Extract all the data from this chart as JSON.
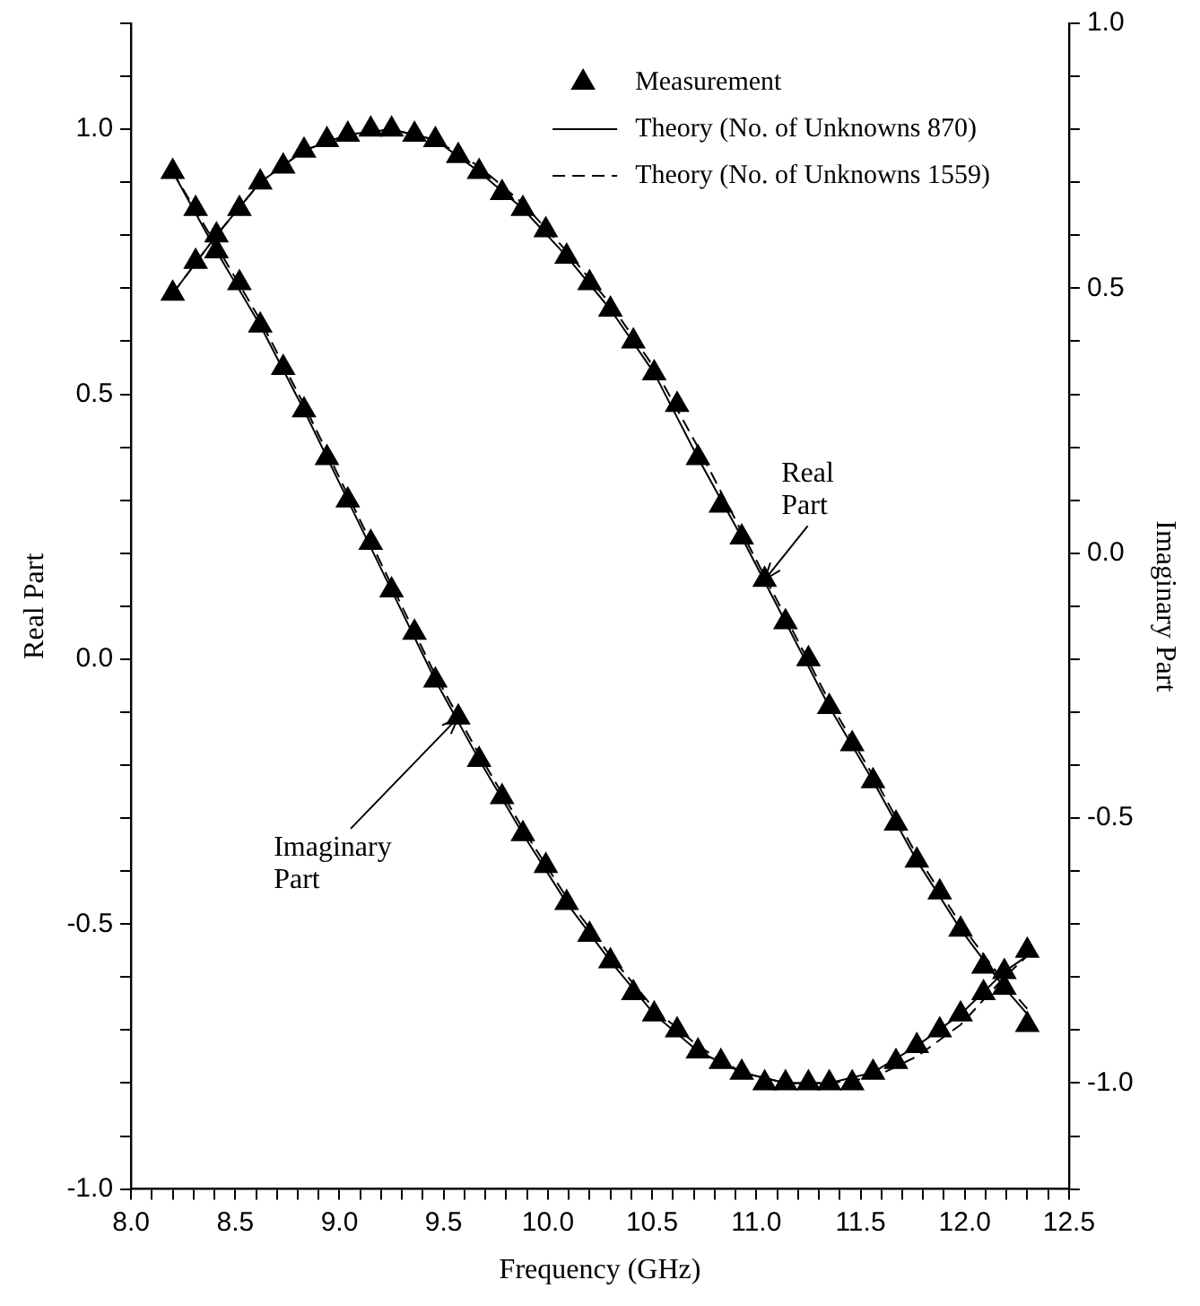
{
  "chart_data": {
    "type": "line",
    "xlabel": "Frequency (GHz)",
    "ylabel": "Real Part",
    "y2label": "Imaginary Part",
    "legend": "top right",
    "grid": false,
    "xlim": [
      8.0,
      12.5
    ],
    "xticks": [
      {
        "value": 8.0,
        "label": "8.0"
      },
      {
        "value": 8.1,
        "label": null
      },
      {
        "value": 8.2,
        "label": null
      },
      {
        "value": 8.3,
        "label": null
      },
      {
        "value": 8.4,
        "label": null
      },
      {
        "value": 8.5,
        "label": "8.5"
      },
      {
        "value": 8.6,
        "label": null
      },
      {
        "value": 8.7,
        "label": null
      },
      {
        "value": 8.8,
        "label": null
      },
      {
        "value": 8.9,
        "label": null
      },
      {
        "value": 9.0,
        "label": "9.0"
      },
      {
        "value": 9.1,
        "label": null
      },
      {
        "value": 9.2,
        "label": null
      },
      {
        "value": 9.3,
        "label": null
      },
      {
        "value": 9.4,
        "label": null
      },
      {
        "value": 9.5,
        "label": "9.5"
      },
      {
        "value": 9.6,
        "label": null
      },
      {
        "value": 9.7,
        "label": null
      },
      {
        "value": 9.8,
        "label": null
      },
      {
        "value": 9.9,
        "label": null
      },
      {
        "value": 10.0,
        "label": "10.0"
      },
      {
        "value": 10.1,
        "label": null
      },
      {
        "value": 10.2,
        "label": null
      },
      {
        "value": 10.3,
        "label": null
      },
      {
        "value": 10.4,
        "label": null
      },
      {
        "value": 10.5,
        "label": "10.5"
      },
      {
        "value": 10.6,
        "label": null
      },
      {
        "value": 10.7,
        "label": null
      },
      {
        "value": 10.8,
        "label": null
      },
      {
        "value": 10.9,
        "label": null
      },
      {
        "value": 11.0,
        "label": "11.0"
      },
      {
        "value": 11.1,
        "label": null
      },
      {
        "value": 11.2,
        "label": null
      },
      {
        "value": 11.3,
        "label": null
      },
      {
        "value": 11.4,
        "label": null
      },
      {
        "value": 11.5,
        "label": "11.5"
      },
      {
        "value": 11.6,
        "label": null
      },
      {
        "value": 11.7,
        "label": null
      },
      {
        "value": 11.8,
        "label": null
      },
      {
        "value": 11.9,
        "label": null
      },
      {
        "value": 12.0,
        "label": "12.0"
      },
      {
        "value": 12.1,
        "label": null
      },
      {
        "value": 12.2,
        "label": null
      },
      {
        "value": 12.3,
        "label": null
      },
      {
        "value": 12.4,
        "label": null
      },
      {
        "value": 12.5,
        "label": "12.5"
      }
    ],
    "ylim": [
      -1.0,
      1.2
    ],
    "yticks": [
      {
        "value": -1.0,
        "label": "-1.0"
      },
      {
        "value": -0.9,
        "label": null
      },
      {
        "value": -0.8,
        "label": null
      },
      {
        "value": -0.7,
        "label": null
      },
      {
        "value": -0.6,
        "label": null
      },
      {
        "value": -0.5,
        "label": "-0.5"
      },
      {
        "value": -0.4,
        "label": null
      },
      {
        "value": -0.3,
        "label": null
      },
      {
        "value": -0.2,
        "label": null
      },
      {
        "value": -0.1,
        "label": null
      },
      {
        "value": 0.0,
        "label": "0.0"
      },
      {
        "value": 0.1,
        "label": null
      },
      {
        "value": 0.2,
        "label": null
      },
      {
        "value": 0.3,
        "label": null
      },
      {
        "value": 0.4,
        "label": null
      },
      {
        "value": 0.5,
        "label": "0.5"
      },
      {
        "value": 0.6,
        "label": null
      },
      {
        "value": 0.7,
        "label": null
      },
      {
        "value": 0.8,
        "label": null
      },
      {
        "value": 0.9,
        "label": null
      },
      {
        "value": 1.0,
        "label": "1.0"
      },
      {
        "value": 1.1,
        "label": null
      },
      {
        "value": 1.2,
        "label": null
      }
    ],
    "y2lim": [
      -1.2,
      1.0
    ],
    "y2ticks": [
      {
        "value": -1.2,
        "label": null
      },
      {
        "value": -1.1,
        "label": null
      },
      {
        "value": -1.0,
        "label": "-1.0"
      },
      {
        "value": -0.9,
        "label": null
      },
      {
        "value": -0.8,
        "label": null
      },
      {
        "value": -0.7,
        "label": null
      },
      {
        "value": -0.6,
        "label": null
      },
      {
        "value": -0.5,
        "label": "-0.5"
      },
      {
        "value": -0.4,
        "label": null
      },
      {
        "value": -0.3,
        "label": null
      },
      {
        "value": -0.2,
        "label": null
      },
      {
        "value": -0.1,
        "label": null
      },
      {
        "value": 0.0,
        "label": "0.0"
      },
      {
        "value": 0.1,
        "label": null
      },
      {
        "value": 0.2,
        "label": null
      },
      {
        "value": 0.3,
        "label": null
      },
      {
        "value": 0.4,
        "label": null
      },
      {
        "value": 0.5,
        "label": "0.5"
      },
      {
        "value": 0.6,
        "label": null
      },
      {
        "value": 0.7,
        "label": null
      },
      {
        "value": 0.8,
        "label": null
      },
      {
        "value": 0.9,
        "label": null
      },
      {
        "value": 1.0,
        "label": "1.0"
      }
    ],
    "series": [
      {
        "type": "scatter",
        "name": "Measurement",
        "color": "#000000",
        "marker": "triangle",
        "x": [
          8.2,
          8.31,
          8.41,
          8.52,
          8.62,
          8.73,
          8.83,
          8.94,
          9.04,
          9.15,
          9.25,
          9.36,
          9.46,
          9.57,
          9.67,
          9.78,
          9.88,
          9.99,
          10.09,
          10.2,
          10.3,
          10.41,
          10.51,
          10.62,
          10.72,
          10.83,
          10.93,
          11.04,
          11.14,
          11.25,
          11.35,
          11.46,
          11.56,
          11.67,
          11.77,
          11.88,
          11.98,
          12.09,
          12.19,
          12.3
        ],
        "values": [
          0.69,
          0.75,
          0.8,
          0.85,
          0.9,
          0.93,
          0.96,
          0.98,
          0.99,
          1.0,
          1.0,
          0.99,
          0.98,
          0.95,
          0.92,
          0.88,
          0.85,
          0.81,
          0.76,
          0.71,
          0.66,
          0.6,
          0.54,
          0.48,
          0.38,
          0.29,
          0.23,
          0.15,
          0.07,
          0.0,
          -0.09,
          -0.16,
          -0.23,
          -0.31,
          -0.38,
          -0.44,
          -0.51,
          -0.58,
          -0.62,
          -0.69
        ]
      },
      {
        "type": "scatter",
        "color": "#000000",
        "marker": "triangle",
        "axis": "y2",
        "x": [
          8.2,
          8.31,
          8.41,
          8.52,
          8.62,
          8.73,
          8.83,
          8.94,
          9.04,
          9.15,
          9.25,
          9.36,
          9.46,
          9.57,
          9.67,
          9.78,
          9.88,
          9.99,
          10.09,
          10.2,
          10.3,
          10.41,
          10.51,
          10.62,
          10.72,
          10.83,
          10.93,
          11.04,
          11.14,
          11.25,
          11.35,
          11.46,
          11.56,
          11.67,
          11.77,
          11.88,
          11.98,
          12.09,
          12.19,
          12.3
        ],
        "values": [
          0.72,
          0.65,
          0.57,
          0.51,
          0.43,
          0.35,
          0.27,
          0.18,
          0.1,
          0.02,
          -0.07,
          -0.15,
          -0.24,
          -0.31,
          -0.39,
          -0.46,
          -0.53,
          -0.59,
          -0.66,
          -0.72,
          -0.77,
          -0.83,
          -0.87,
          -0.9,
          -0.94,
          -0.96,
          -0.98,
          -1.0,
          -1.0,
          -1.0,
          -1.0,
          -1.0,
          -0.98,
          -0.96,
          -0.93,
          -0.9,
          -0.87,
          -0.83,
          -0.79,
          -0.75
        ]
      },
      {
        "type": "line",
        "name": "Theory (No. of Unknowns 870)",
        "color": "#000000",
        "marker": "none",
        "line_style": "solid",
        "x": [
          8.2,
          8.41,
          8.62,
          8.83,
          9.04,
          9.25,
          9.46,
          9.67,
          9.88,
          10.09,
          10.3,
          10.51,
          10.72,
          10.93,
          11.14,
          11.35,
          11.56,
          11.77,
          11.98,
          12.19,
          12.3
        ],
        "values": [
          0.69,
          0.8,
          0.9,
          0.96,
          0.99,
          1.0,
          0.98,
          0.92,
          0.85,
          0.76,
          0.66,
          0.54,
          0.38,
          0.23,
          0.07,
          -0.09,
          -0.23,
          -0.38,
          -0.51,
          -0.62,
          -0.67
        ]
      },
      {
        "type": "line",
        "color": "#000000",
        "marker": "none",
        "line_style": "solid",
        "axis": "y2",
        "x": [
          8.2,
          8.41,
          8.62,
          8.83,
          9.04,
          9.25,
          9.46,
          9.67,
          9.88,
          10.09,
          10.3,
          10.51,
          10.72,
          10.93,
          11.14,
          11.35,
          11.56,
          11.77,
          11.98,
          12.19,
          12.3
        ],
        "values": [
          0.72,
          0.57,
          0.43,
          0.27,
          0.1,
          -0.07,
          -0.24,
          -0.39,
          -0.53,
          -0.66,
          -0.77,
          -0.87,
          -0.94,
          -0.98,
          -1.0,
          -1.0,
          -0.98,
          -0.93,
          -0.87,
          -0.79,
          -0.76
        ]
      },
      {
        "type": "line",
        "name": "Theory (No. of Unknowns 1559)",
        "color": "#000000",
        "marker": "none",
        "line_style": "dashed",
        "x": [
          8.2,
          8.41,
          8.62,
          8.83,
          9.04,
          9.25,
          9.46,
          9.67,
          9.88,
          10.09,
          10.3,
          10.51,
          10.72,
          10.93,
          11.14,
          11.35,
          11.56,
          11.77,
          11.98,
          12.19,
          12.3
        ],
        "values": [
          0.69,
          0.8,
          0.9,
          0.96,
          0.99,
          1.0,
          0.98,
          0.93,
          0.86,
          0.77,
          0.67,
          0.55,
          0.4,
          0.24,
          0.08,
          -0.08,
          -0.22,
          -0.37,
          -0.5,
          -0.61,
          -0.66
        ]
      },
      {
        "type": "line",
        "color": "#000000",
        "marker": "none",
        "line_style": "dashed",
        "axis": "y2",
        "x": [
          8.2,
          8.41,
          8.62,
          8.83,
          9.04,
          9.25,
          9.46,
          9.67,
          9.88,
          10.09,
          10.3,
          10.51,
          10.72,
          10.93,
          11.14,
          11.35,
          11.56,
          11.77,
          11.98,
          12.19,
          12.3
        ],
        "values": [
          0.72,
          0.58,
          0.44,
          0.28,
          0.11,
          -0.06,
          -0.23,
          -0.38,
          -0.52,
          -0.65,
          -0.76,
          -0.86,
          -0.93,
          -0.98,
          -1.0,
          -1.0,
          -0.99,
          -0.95,
          -0.89,
          -0.8,
          -0.76
        ]
      }
    ],
    "annotations": [
      {
        "text": "Real Part",
        "x": 11.04,
        "y": 0.15
      },
      {
        "text": "Imaginary Part",
        "x": 9.57,
        "y": -0.11
      }
    ]
  }
}
